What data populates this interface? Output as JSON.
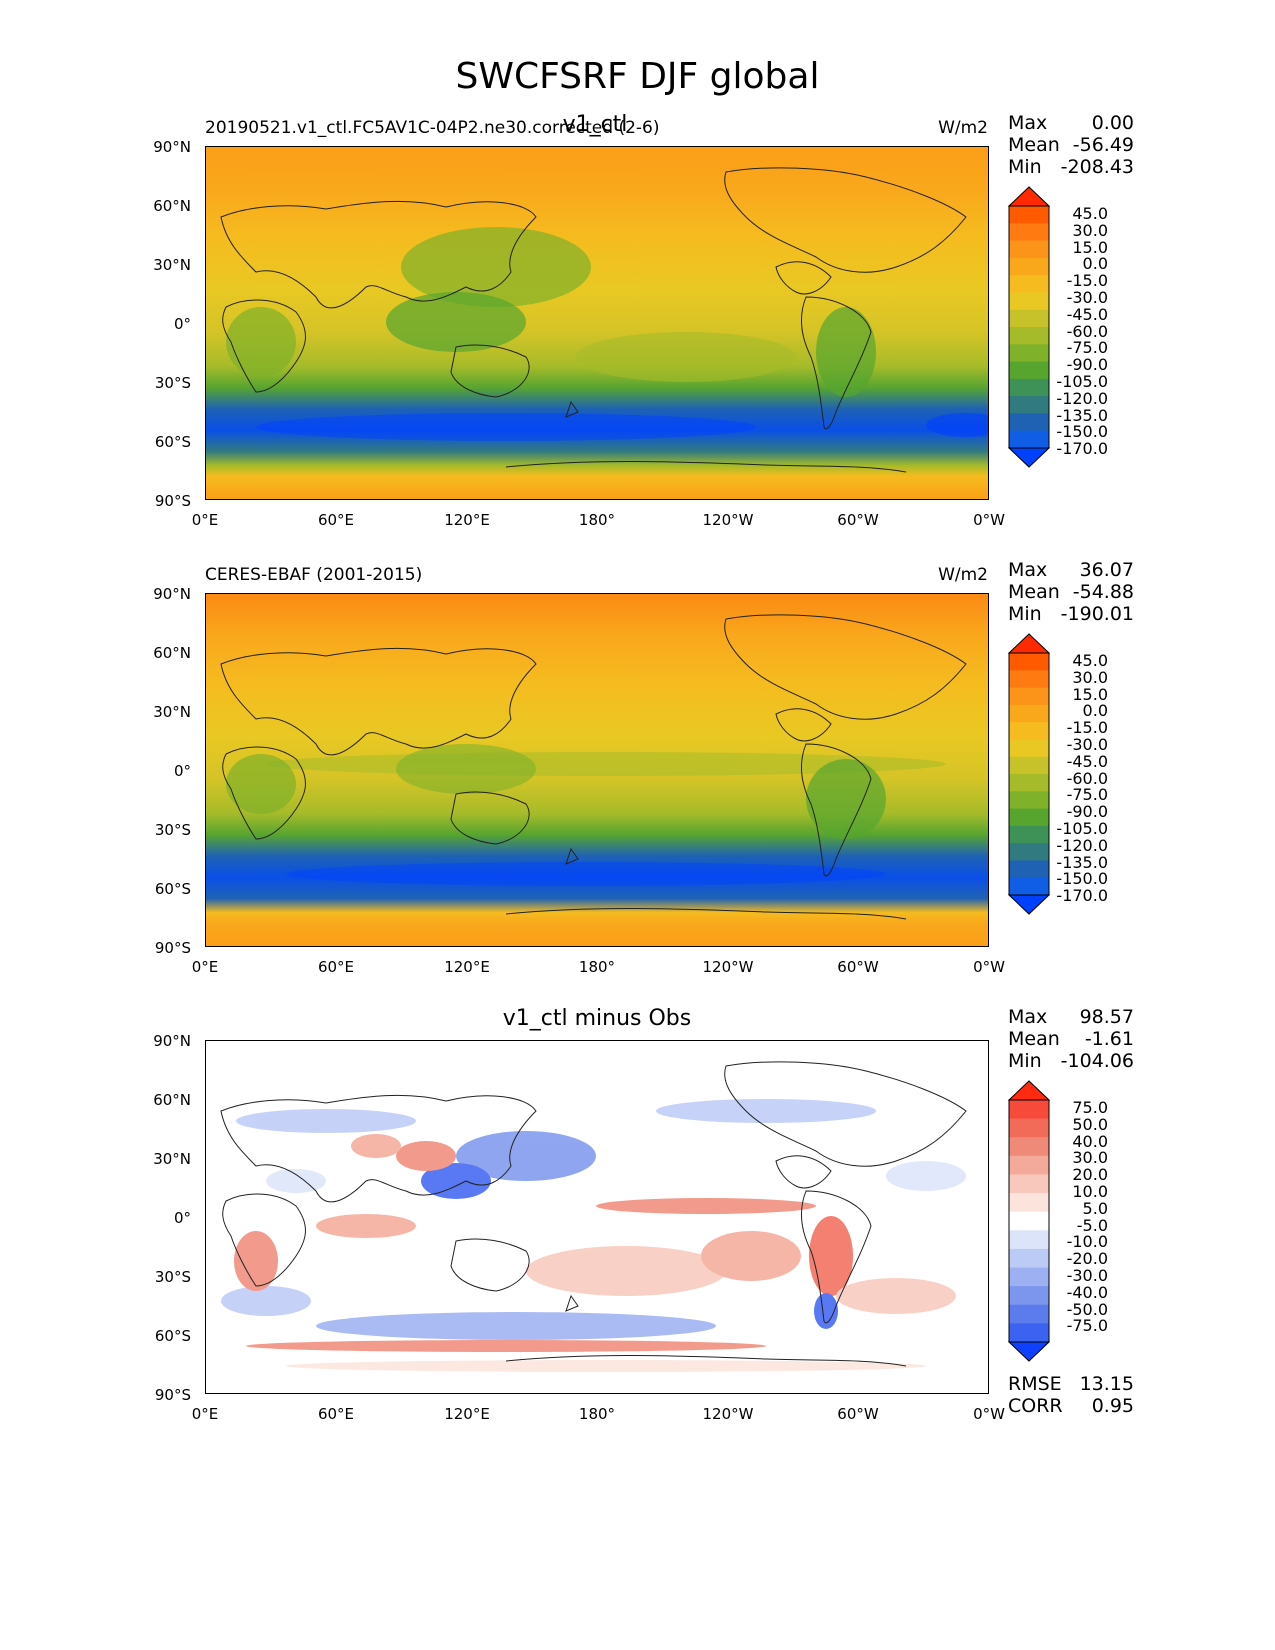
{
  "title": "SWCFSRF DJF global",
  "panels": [
    {
      "test_case": "20190521.v1_ctl.FC5AV1C-04P2.ne30.corrected (2-6)",
      "center_title": "v1_ctl",
      "units": "W/m2",
      "stats": {
        "max_label": "Max",
        "max": "0.00",
        "mean_label": "Mean",
        "mean": "-56.49",
        "min_label": "Min",
        "min": "-208.43"
      },
      "colorbar_labels": [
        "45.0",
        "30.0",
        "15.0",
        "0.0",
        "-15.0",
        "-30.0",
        "-45.0",
        "-60.0",
        "-75.0",
        "-90.0",
        "-105.0",
        "-120.0",
        "-135.0",
        "-150.0",
        "-170.0"
      ],
      "colorbar_colors": [
        "#ff2a00",
        "#ff5a00",
        "#ff7a10",
        "#fb9418",
        "#f9a81c",
        "#f5bb1f",
        "#e9c823",
        "#c8c22a",
        "#a6bb29",
        "#7fb12a",
        "#57a52f",
        "#3f9257",
        "#317a80",
        "#1f62b3",
        "#115ee6",
        "#0040ff"
      ]
    },
    {
      "test_case": "CERES-EBAF (2001-2015)",
      "center_title": "",
      "units": "W/m2",
      "stats": {
        "max_label": "Max",
        "max": "36.07",
        "mean_label": "Mean",
        "mean": "-54.88",
        "min_label": "Min",
        "min": "-190.01"
      },
      "colorbar_labels": [
        "45.0",
        "30.0",
        "15.0",
        "0.0",
        "-15.0",
        "-30.0",
        "-45.0",
        "-60.0",
        "-75.0",
        "-90.0",
        "-105.0",
        "-120.0",
        "-135.0",
        "-150.0",
        "-170.0"
      ],
      "colorbar_colors": [
        "#ff2a00",
        "#ff5a00",
        "#ff7a10",
        "#fb9418",
        "#f9a81c",
        "#f5bb1f",
        "#e9c823",
        "#c8c22a",
        "#a6bb29",
        "#7fb12a",
        "#57a52f",
        "#3f9257",
        "#317a80",
        "#1f62b3",
        "#115ee6",
        "#0040ff"
      ]
    },
    {
      "test_case": "",
      "center_title": "v1_ctl minus Obs",
      "units": "",
      "stats": {
        "max_label": "Max",
        "max": "98.57",
        "mean_label": "Mean",
        "mean": "-1.61",
        "min_label": "Min",
        "min": "-104.06"
      },
      "rmse_label": "RMSE",
      "rmse": "13.15",
      "corr_label": "CORR",
      "corr": "0.95",
      "colorbar_labels": [
        "75.0",
        "50.0",
        "40.0",
        "30.0",
        "20.0",
        "10.0",
        "5.0",
        "-5.0",
        "-10.0",
        "-20.0",
        "-30.0",
        "-40.0",
        "-50.0",
        "-75.0"
      ],
      "colorbar_colors": [
        "#ff2a10",
        "#f84a3a",
        "#f26a58",
        "#f08a78",
        "#f4aa9a",
        "#f8c8bc",
        "#fce4dc",
        "#ffffff",
        "#dce4fa",
        "#bccaf6",
        "#9cb0f2",
        "#7c96ee",
        "#5c7cee",
        "#3c62f2",
        "#1040ff"
      ]
    }
  ],
  "axes": {
    "yticks": [
      "90°N",
      "60°N",
      "30°N",
      "0°",
      "30°S",
      "60°S",
      "90°S"
    ],
    "xticks": [
      "0°E",
      "60°E",
      "120°E",
      "180°",
      "120°W",
      "60°W",
      "0°W"
    ]
  }
}
